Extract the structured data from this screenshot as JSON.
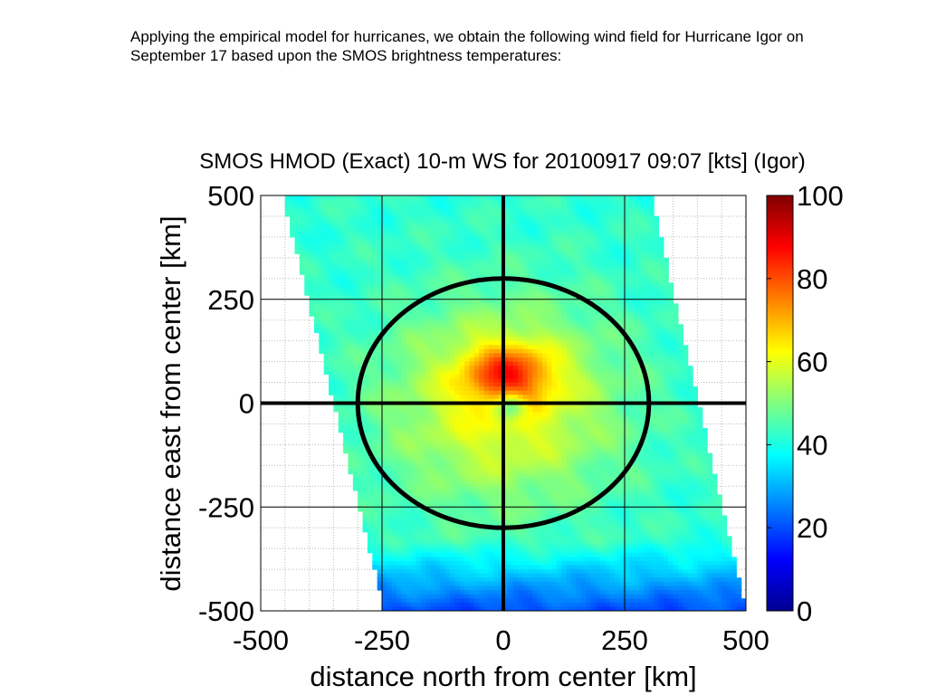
{
  "intro_text": "Applying the empirical model for hurricanes, we obtain the following wind field for Hurricane Igor on September 17 based upon the SMOS brightness temperatures:",
  "chart_data": {
    "type": "heatmap",
    "title": "SMOS HMOD (Exact) 10-m WS for 20100917 09:07 [kts] (Igor)",
    "xlabel": "distance north from center [km]",
    "ylabel": "distance east from center [km]",
    "xlim": [
      -500,
      500
    ],
    "ylim": [
      -500,
      500
    ],
    "xticks": [
      -500,
      -250,
      0,
      250,
      500
    ],
    "yticks": [
      -500,
      -250,
      0,
      250,
      500
    ],
    "grid": "on",
    "colorbar": {
      "ticks": [
        0,
        20,
        40,
        60,
        80,
        100
      ],
      "range": [
        0,
        100
      ],
      "colormap": "jet"
    },
    "swath": {
      "left_edge_top_x": -455,
      "left_edge_bottom_x": -245,
      "right_edge_top_x": 305,
      "right_edge_bottom_x": 500,
      "background_ws": 42
    },
    "storm": {
      "center": [
        0,
        0
      ],
      "peak_center": [
        10,
        70
      ],
      "max_ws": 84,
      "eye_ws": 55
    },
    "overlay": {
      "circle_radius_km": 300,
      "crosshair_at": [
        0,
        0
      ]
    },
    "colors": {
      "overlay_line": "#000000",
      "background": "#ffffff"
    }
  }
}
